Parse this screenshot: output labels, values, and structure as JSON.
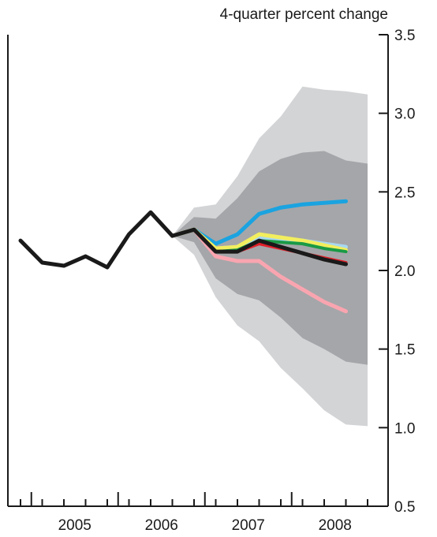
{
  "chart_data": {
    "type": "line",
    "title": "",
    "unit_label": "4-quarter percent change",
    "xlabel": "",
    "ylabel": "",
    "ylim": [
      0.5,
      3.5
    ],
    "y_ticks": [
      0.5,
      1.0,
      1.5,
      2.0,
      2.5,
      3.0,
      3.5
    ],
    "y_tick_labels": [
      "0.5",
      "1.0",
      "1.5",
      "2.0",
      "2.5",
      "3.0",
      "3.5"
    ],
    "y_axis_position": "right",
    "x_year_labels": [
      "2005",
      "2006",
      "2007",
      "2008"
    ],
    "quarters": [
      "2004Q4",
      "2005Q1",
      "2005Q2",
      "2005Q3",
      "2005Q4",
      "2006Q1",
      "2006Q2",
      "2006Q3",
      "2006Q4",
      "2007Q1",
      "2007Q2",
      "2007Q3",
      "2007Q4",
      "2008Q1",
      "2008Q2",
      "2008Q3",
      "2008Q4"
    ],
    "grid": false,
    "fan_bands": [
      {
        "name": "outer band",
        "color": "#d3d4d6",
        "x": [
          "2006Q3",
          "2006Q4",
          "2007Q1",
          "2007Q2",
          "2007Q3",
          "2007Q4",
          "2008Q1",
          "2008Q2",
          "2008Q3",
          "2008Q4"
        ],
        "upper": [
          2.22,
          2.4,
          2.42,
          2.6,
          2.84,
          2.98,
          3.17,
          3.15,
          3.14,
          3.12
        ],
        "lower": [
          2.22,
          2.1,
          1.83,
          1.65,
          1.55,
          1.38,
          1.25,
          1.11,
          1.02,
          1.01
        ]
      },
      {
        "name": "inner band",
        "color": "#a5a6a9",
        "x": [
          "2006Q3",
          "2006Q4",
          "2007Q1",
          "2007Q2",
          "2007Q3",
          "2007Q4",
          "2008Q1",
          "2008Q2",
          "2008Q3",
          "2008Q4"
        ],
        "upper": [
          2.22,
          2.34,
          2.33,
          2.46,
          2.63,
          2.71,
          2.75,
          2.76,
          2.7,
          2.68
        ],
        "lower": [
          2.22,
          2.18,
          1.95,
          1.85,
          1.81,
          1.7,
          1.57,
          1.5,
          1.42,
          1.4
        ]
      }
    ],
    "series": [
      {
        "color": "#f9a5b0",
        "width": 5,
        "x": [
          "2006Q3",
          "2006Q4",
          "2007Q1",
          "2007Q2",
          "2007Q3",
          "2007Q4",
          "2008Q1",
          "2008Q2",
          "2008Q3"
        ],
        "values": [
          2.22,
          2.26,
          2.09,
          2.06,
          2.06,
          1.96,
          1.88,
          1.8,
          1.74
        ]
      },
      {
        "color": "#1aa3e0",
        "width": 5,
        "x": [
          "2006Q3",
          "2006Q4",
          "2007Q1",
          "2007Q2",
          "2007Q3",
          "2007Q4",
          "2008Q1",
          "2008Q2",
          "2008Q3"
        ],
        "values": [
          2.22,
          2.26,
          2.17,
          2.23,
          2.36,
          2.4,
          2.42,
          2.43,
          2.44
        ]
      },
      {
        "color": "#a8d8f0",
        "width": 5,
        "x": [
          "2006Q3",
          "2006Q4",
          "2007Q1",
          "2007Q2",
          "2007Q3",
          "2007Q4",
          "2008Q1",
          "2008Q2",
          "2008Q3"
        ],
        "values": [
          2.22,
          2.26,
          2.14,
          2.15,
          2.21,
          2.2,
          2.19,
          2.17,
          2.15
        ]
      },
      {
        "color": "#f2ee5e",
        "width": 5,
        "x": [
          "2006Q3",
          "2006Q4",
          "2007Q1",
          "2007Q2",
          "2007Q3",
          "2007Q4",
          "2008Q1",
          "2008Q2",
          "2008Q3"
        ],
        "values": [
          2.22,
          2.26,
          2.14,
          2.15,
          2.23,
          2.21,
          2.19,
          2.16,
          2.13
        ]
      },
      {
        "color": "#1a9a45",
        "width": 4,
        "x": [
          "2006Q3",
          "2006Q4",
          "2007Q1",
          "2007Q2",
          "2007Q3",
          "2007Q4",
          "2008Q1",
          "2008Q2",
          "2008Q3"
        ],
        "values": [
          2.22,
          2.26,
          2.12,
          2.13,
          2.19,
          2.18,
          2.17,
          2.14,
          2.12
        ]
      },
      {
        "color": "#e0202a",
        "width": 4,
        "x": [
          "2006Q3",
          "2006Q4",
          "2007Q1",
          "2007Q2",
          "2007Q3",
          "2007Q4",
          "2008Q1",
          "2008Q2",
          "2008Q3"
        ],
        "values": [
          2.22,
          2.26,
          2.12,
          2.12,
          2.17,
          2.14,
          2.11,
          2.08,
          2.05
        ]
      },
      {
        "color": "#1a1a1a",
        "width": 5,
        "x": [
          "2004Q4",
          "2005Q1",
          "2005Q2",
          "2005Q3",
          "2005Q4",
          "2006Q1",
          "2006Q2",
          "2006Q3",
          "2006Q4",
          "2007Q1",
          "2007Q2",
          "2007Q3",
          "2007Q4",
          "2008Q1",
          "2008Q2",
          "2008Q3"
        ],
        "values": [
          2.19,
          2.05,
          2.03,
          2.09,
          2.02,
          2.23,
          2.37,
          2.22,
          2.26,
          2.12,
          2.12,
          2.19,
          2.15,
          2.11,
          2.07,
          2.04
        ]
      }
    ]
  }
}
